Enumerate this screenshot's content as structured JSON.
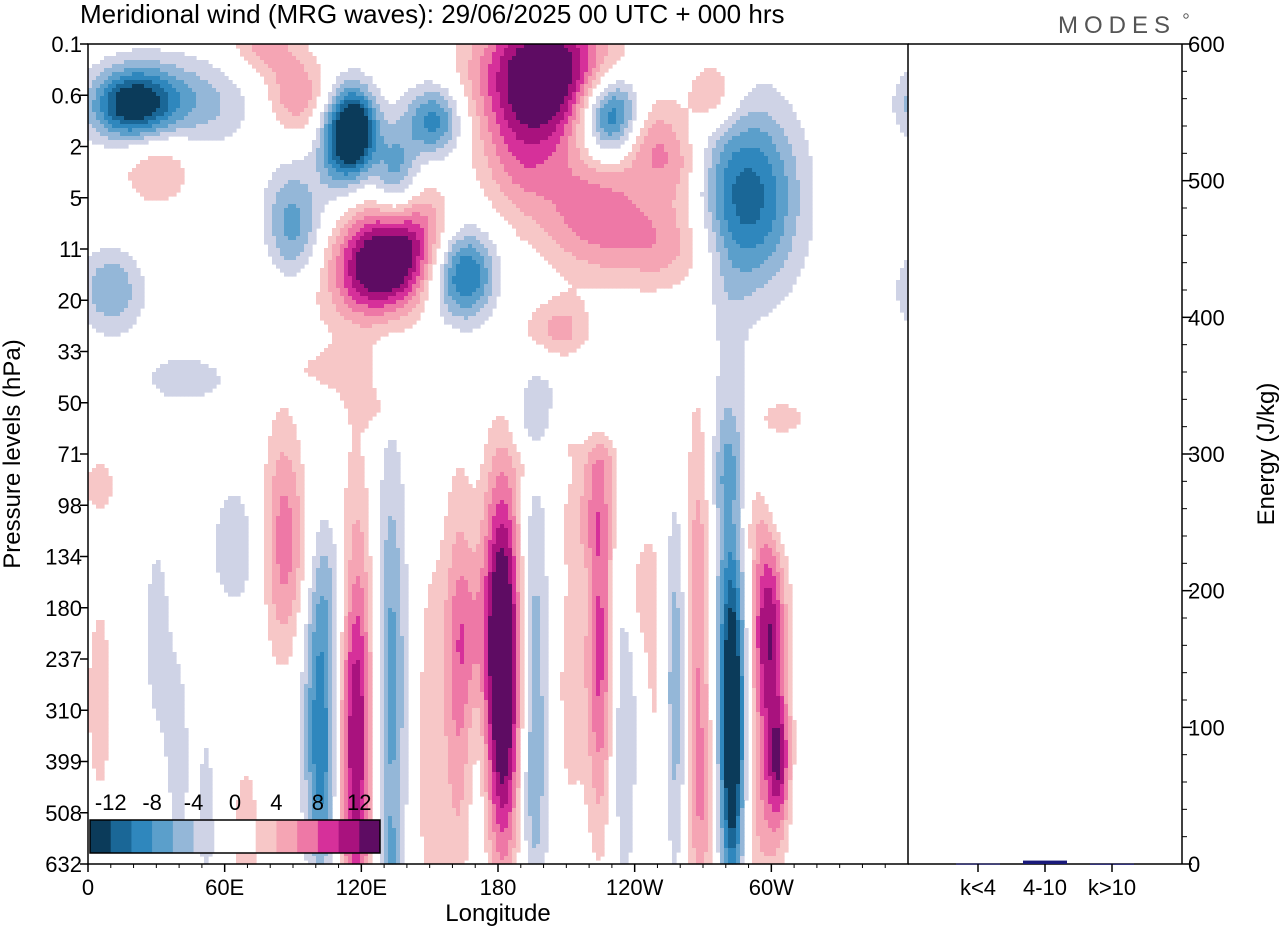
{
  "header": {
    "title": "Meridional wind (MRG waves):  29/06/2025  00 UTC  + 000 hrs",
    "logo": "MODES"
  },
  "colors": {
    "neg_levels": [
      "#0b3b5a",
      "#1a6797",
      "#2f87bd",
      "#5b9fcb",
      "#94b7d8",
      "#cfd3e6"
    ],
    "pos_levels": [
      "#f7c7c7",
      "#f5a5b4",
      "#ee78a6",
      "#d6309a",
      "#a9127e",
      "#5e0c63"
    ],
    "zero": "#ffffff",
    "energy_bar": "#1a1a7a"
  },
  "chart_data": [
    {
      "type": "heatmap",
      "title": "Meridional wind (MRG waves):  29/06/2025  00 UTC  + 000 hrs",
      "xlabel": "Longitude",
      "ylabel": "Pressure levels (hPa)",
      "x_ticks": [
        "0",
        "60E",
        "120E",
        "180",
        "120W",
        "60W"
      ],
      "y_ticks": [
        "0.1",
        "0.6",
        "2",
        "5",
        "11",
        "20",
        "33",
        "50",
        "71",
        "98",
        "134",
        "180",
        "237",
        "310",
        "399",
        "508",
        "632"
      ],
      "colorbar": {
        "labels": [
          "-12",
          "-8",
          "-4",
          "0",
          "4",
          "8",
          "12"
        ],
        "levels": [
          -14,
          -12,
          -10,
          -8,
          -6,
          -4,
          -2,
          2,
          4,
          6,
          8,
          10,
          12,
          14
        ]
      },
      "features": [
        {
          "lon": 20,
          "level": 1.2,
          "w": 18,
          "h": 0.7,
          "v": -13
        },
        {
          "lon": 40,
          "level": 1.2,
          "w": 30,
          "h": 0.9,
          "v": -6
        },
        {
          "lon": 77,
          "level": 0.0,
          "w": 14,
          "h": 0.6,
          "v": 5
        },
        {
          "lon": 92,
          "level": 1.0,
          "w": 14,
          "h": 0.8,
          "v": 6
        },
        {
          "lon": 110,
          "level": 1.9,
          "w": 10,
          "h": 1.0,
          "v": -9
        },
        {
          "lon": 118,
          "level": 1.7,
          "w": 9,
          "h": 0.8,
          "v": -14
        },
        {
          "lon": 135,
          "level": 2.6,
          "w": 10,
          "h": 1.0,
          "v": -8
        },
        {
          "lon": 152,
          "level": 1.5,
          "w": 12,
          "h": 0.7,
          "v": -9
        },
        {
          "lon": 140,
          "level": 3.7,
          "w": 18,
          "h": 1.0,
          "v": 8
        },
        {
          "lon": 128,
          "level": 4.4,
          "w": 18,
          "h": 0.9,
          "v": 12
        },
        {
          "lon": 90,
          "level": 3.6,
          "w": 14,
          "h": 1.2,
          "v": -9
        },
        {
          "lon": 30,
          "level": 2.1,
          "w": 18,
          "h": 1.0,
          "v": 5
        },
        {
          "lon": 10,
          "level": 4.8,
          "w": 14,
          "h": 0.8,
          "v": -6
        },
        {
          "lon": 165,
          "level": 4.5,
          "w": 14,
          "h": 0.9,
          "v": -11
        },
        {
          "lon": 190,
          "level": 2.3,
          "w": 18,
          "h": 1.2,
          "v": 5
        },
        {
          "lon": 200,
          "level": 0.6,
          "w": 28,
          "h": 1.3,
          "v": 16
        },
        {
          "lon": 230,
          "level": 1.4,
          "w": 14,
          "h": 0.8,
          "v": -14
        },
        {
          "lon": 245,
          "level": 1.8,
          "w": 14,
          "h": 0.9,
          "v": 6
        },
        {
          "lon": 222,
          "level": 3.3,
          "w": 24,
          "h": 1.2,
          "v": 7
        },
        {
          "lon": 290,
          "level": 3.0,
          "w": 22,
          "h": 1.8,
          "v": -11
        },
        {
          "lon": 255,
          "level": 3.9,
          "w": 22,
          "h": 0.9,
          "v": 5
        },
        {
          "lon": 260,
          "level": 2.4,
          "w": 12,
          "h": 0.8,
          "v": 4
        },
        {
          "lon": 275,
          "level": 1.0,
          "w": 12,
          "h": 0.7,
          "v": 5
        },
        {
          "lon": 100,
          "level": 4.3,
          "w": 40,
          "h": 1.6,
          "v": 3
        },
        {
          "lon": 45,
          "level": 6.5,
          "w": 30,
          "h": 0.8,
          "v": -2.5
        },
        {
          "lon": 200,
          "level": 7.2,
          "w": 22,
          "h": 1.3,
          "v": -2.5
        },
        {
          "lon": 200,
          "level": 5.6,
          "w": 16,
          "h": 0.6,
          "v": 3
        },
        {
          "lon": 210,
          "level": 5.6,
          "w": 10,
          "h": 0.6,
          "v": 3
        },
        {
          "lon": 110,
          "level": 6.4,
          "w": 20,
          "h": 0.5,
          "v": 2.5
        },
        {
          "lon": 127,
          "level": 7.1,
          "w": 12,
          "h": 0.4,
          "v": 2.5
        },
        {
          "lon": 195,
          "level": 8.2,
          "w": 8,
          "h": 0.5,
          "v": 3
        },
        {
          "lon": 210,
          "level": 7.6,
          "w": 8,
          "h": 0.6,
          "v": 3
        },
        {
          "lon": 220,
          "level": 9.2,
          "w": 12,
          "h": 0.9,
          "v": 3.5
        },
        {
          "lon": 225,
          "level": 8.2,
          "w": 12,
          "h": 0.5,
          "v": 3
        },
        {
          "lon": 305,
          "level": 7.3,
          "w": 12,
          "h": 0.4,
          "v": 3
        },
        {
          "lon": 65,
          "level": 9.8,
          "w": 14,
          "h": 1.6,
          "v": -3
        },
        {
          "lon": 85,
          "level": 9.6,
          "w": 9,
          "h": 2.4,
          "v": 5.5
        },
        {
          "lon": 95,
          "level": 9.9,
          "w": 14,
          "h": 1.8,
          "v": 3
        },
        {
          "lon": 102,
          "level": 12.5,
          "w": 8,
          "h": 3.4,
          "v": -8.5
        },
        {
          "lon": 103,
          "level": 14.5,
          "w": 6,
          "h": 2.0,
          "v": -4
        },
        {
          "lon": 108,
          "level": 10.5,
          "w": 10,
          "h": 1.5,
          "v": -3
        },
        {
          "lon": 118,
          "level": 13.5,
          "w": 7,
          "h": 4.2,
          "v": 10
        },
        {
          "lon": 113,
          "level": 13.5,
          "w": 12,
          "h": 4.6,
          "v": 2.5
        },
        {
          "lon": 133,
          "level": 12.5,
          "w": 7,
          "h": 4.5,
          "v": -7
        },
        {
          "lon": 133,
          "level": 16.2,
          "w": 5,
          "h": 1.2,
          "v": -3
        },
        {
          "lon": 150,
          "level": 13.8,
          "w": 7,
          "h": 4.5,
          "v": 3
        },
        {
          "lon": 163,
          "level": 12.5,
          "w": 7,
          "h": 4.0,
          "v": 6
        },
        {
          "lon": 168,
          "level": 11.5,
          "w": 10,
          "h": 1.5,
          "v": 3
        },
        {
          "lon": 182,
          "level": 11.6,
          "w": 9,
          "h": 3.6,
          "v": 14
        },
        {
          "lon": 182,
          "level": 13.6,
          "w": 8,
          "h": 3.0,
          "v": 5
        },
        {
          "lon": 172,
          "level": 14.0,
          "w": 6,
          "h": 3.0,
          "v": -2.5
        },
        {
          "lon": 195,
          "level": 12.0,
          "w": 7,
          "h": 3.8,
          "v": -6
        },
        {
          "lon": 196,
          "level": 15.0,
          "w": 6,
          "h": 2.0,
          "v": -2.5
        },
        {
          "lon": 212,
          "level": 12.5,
          "w": 7,
          "h": 3.0,
          "v": 3
        },
        {
          "lon": 225,
          "level": 11.8,
          "w": 6,
          "h": 3.5,
          "v": 9
        },
        {
          "lon": 235,
          "level": 13.0,
          "w": 7,
          "h": 4.0,
          "v": -4
        },
        {
          "lon": 241,
          "level": 10.7,
          "w": 6,
          "h": 1.2,
          "v": 3
        },
        {
          "lon": 250,
          "level": 12.0,
          "w": 7,
          "h": 3.5,
          "v": 3
        },
        {
          "lon": 258,
          "level": 12.4,
          "w": 6,
          "h": 3.6,
          "v": -7
        },
        {
          "lon": 268,
          "level": 11.7,
          "w": 7,
          "h": 4.5,
          "v": 7
        },
        {
          "lon": 270,
          "level": 15.0,
          "w": 6,
          "h": 1.8,
          "v": 3
        },
        {
          "lon": 283,
          "level": 13.6,
          "w": 5,
          "h": 3.0,
          "v": -14
        },
        {
          "lon": 281,
          "level": 11.0,
          "w": 9,
          "h": 5.0,
          "v": -6
        },
        {
          "lon": 281,
          "level": 8.5,
          "w": 7,
          "h": 1.2,
          "v": -3
        },
        {
          "lon": 298,
          "level": 11.2,
          "w": 8,
          "h": 1.8,
          "v": 9
        },
        {
          "lon": 300,
          "level": 13.3,
          "w": 7,
          "h": 2.6,
          "v": 6
        },
        {
          "lon": 304,
          "level": 14.2,
          "w": 5,
          "h": 1.2,
          "v": 10
        },
        {
          "lon": 293,
          "level": 15.0,
          "w": 8,
          "h": 2.0,
          "v": 3
        },
        {
          "lon": 290,
          "level": 9.2,
          "w": 12,
          "h": 1.0,
          "v": 3
        },
        {
          "lon": 303,
          "level": 9.0,
          "w": 8,
          "h": 0.9,
          "v": -3
        },
        {
          "lon": 305,
          "level": 14.5,
          "w": 6,
          "h": 1.0,
          "v": -3
        },
        {
          "lon": 5,
          "level": 12.8,
          "w": 7,
          "h": 2.5,
          "v": 3
        },
        {
          "lon": 30,
          "level": 11.5,
          "w": 8,
          "h": 3.0,
          "v": -2.5
        },
        {
          "lon": 40,
          "level": 14.0,
          "w": 6,
          "h": 2.5,
          "v": -2.5
        },
        {
          "lon": 52,
          "level": 15.0,
          "w": 5,
          "h": 2.5,
          "v": -2.5
        },
        {
          "lon": 70,
          "level": 15.5,
          "w": 8,
          "h": 2.0,
          "v": 3
        },
        {
          "lon": 80,
          "level": 14.5,
          "w": 5,
          "h": 1.5,
          "v": -2.5
        },
        {
          "lon": 5,
          "level": 8.6,
          "w": 8,
          "h": 0.6,
          "v": 3
        }
      ]
    },
    {
      "type": "bar",
      "ylabel": "Energy (J/kg)",
      "categories": [
        "k<4",
        "4-10",
        "k>10"
      ],
      "values": [
        0.3,
        2.5,
        0.2
      ],
      "ylim": [
        0,
        600
      ],
      "y_ticks": [
        "0",
        "100",
        "200",
        "300",
        "400",
        "500",
        "600"
      ]
    }
  ]
}
